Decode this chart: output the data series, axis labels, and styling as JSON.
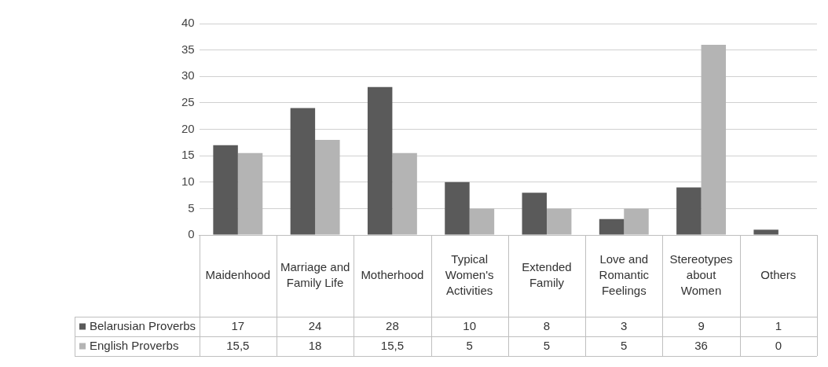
{
  "chart_data": {
    "type": "bar",
    "categories": [
      "Maidenhood",
      "Marriage and Family Life",
      "Motherhood",
      "Typical Women's Activities",
      "Extended Family",
      "Love and Romantic Feelings",
      "Stereotypes about Women",
      "Others"
    ],
    "series": [
      {
        "name": "Belarusian Proverbs",
        "color": "#5a5a5a",
        "values": [
          17,
          24,
          28,
          10,
          8,
          3,
          9,
          1
        ],
        "value_labels": [
          "17",
          "24",
          "28",
          "10",
          "8",
          "3",
          "9",
          "1"
        ]
      },
      {
        "name": "English Proverbs",
        "color": "#b4b4b4",
        "values": [
          15.5,
          18,
          15.5,
          5,
          5,
          5,
          36,
          0
        ],
        "value_labels": [
          "15,5",
          "18",
          "15,5",
          "5",
          "5",
          "5",
          "36",
          "0"
        ]
      }
    ],
    "ylim": [
      0,
      40
    ],
    "yticks": [
      0,
      5,
      10,
      15,
      20,
      25,
      30,
      35,
      40
    ],
    "grid": "y",
    "legend": "bottom left"
  }
}
